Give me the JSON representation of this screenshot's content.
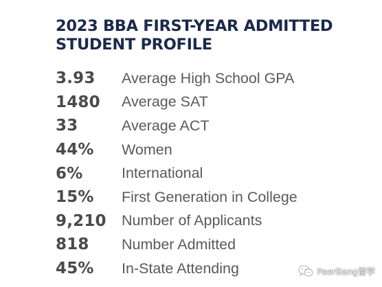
{
  "title": {
    "line1": "2023 BBA FIRST-YEAR ADMITTED",
    "line2": "STUDENT PROFILE"
  },
  "stats": [
    {
      "value": "3.93",
      "label": "Average High School GPA"
    },
    {
      "value": "1480",
      "label": "Average SAT"
    },
    {
      "value": "33",
      "label": "Average ACT"
    },
    {
      "value": "44%",
      "label": "Women"
    },
    {
      "value": "6%",
      "label": "International"
    },
    {
      "value": "15%",
      "label": "First Generation in College"
    },
    {
      "value": "9,210",
      "label": "Number of Applicants"
    },
    {
      "value": "818",
      "label": "Number Admitted"
    },
    {
      "value": "45%",
      "label": "In-State Attending"
    }
  ],
  "watermark": {
    "text": "PeerBang留学",
    "icon": "wechat-icon"
  },
  "colors": {
    "title": "#1b2a4a",
    "value": "#4a4a4c",
    "label": "#59595b",
    "background": "#ffffff"
  }
}
